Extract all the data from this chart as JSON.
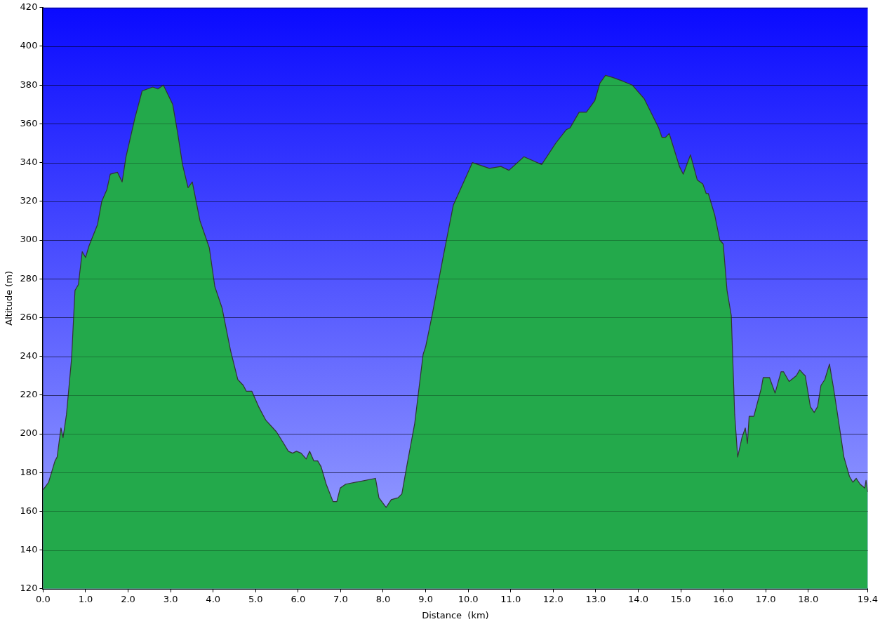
{
  "chart_data": {
    "type": "area",
    "xlabel": "Distance  (km)",
    "ylabel": "Altitude (m)",
    "xlim": [
      0,
      19.4
    ],
    "ylim": [
      120,
      420
    ],
    "xticks": [
      {
        "value": 0,
        "label": "0.0"
      },
      {
        "value": 1,
        "label": "1.0"
      },
      {
        "value": 2,
        "label": "2.0"
      },
      {
        "value": 3,
        "label": "3.0"
      },
      {
        "value": 4,
        "label": "4.0"
      },
      {
        "value": 5,
        "label": "5.0"
      },
      {
        "value": 6,
        "label": "6.0"
      },
      {
        "value": 7,
        "label": "7.0"
      },
      {
        "value": 8,
        "label": "8.0"
      },
      {
        "value": 9,
        "label": "9.0"
      },
      {
        "value": 10,
        "label": "10.0"
      },
      {
        "value": 11,
        "label": "11.0"
      },
      {
        "value": 12,
        "label": "12.0"
      },
      {
        "value": 13,
        "label": "13.0"
      },
      {
        "value": 14,
        "label": "14.0"
      },
      {
        "value": 15,
        "label": "15.0"
      },
      {
        "value": 16,
        "label": "16.0"
      },
      {
        "value": 17,
        "label": "17.0"
      },
      {
        "value": 18,
        "label": "18.0"
      },
      {
        "value": 19.4,
        "label": "19.4"
      }
    ],
    "yticks": [
      120,
      140,
      160,
      180,
      200,
      220,
      240,
      260,
      280,
      300,
      320,
      340,
      360,
      380,
      400,
      420
    ],
    "grid": "y",
    "legend": false,
    "marker": "none",
    "line_style": "solid",
    "series": [
      {
        "color": "#23a94b",
        "x": [
          0,
          0.03,
          0.13,
          0.28,
          0.33,
          0.42,
          0.47,
          0.55,
          0.67,
          0.75,
          0.83,
          0.92,
          1.0,
          1.08,
          1.28,
          1.38,
          1.5,
          1.58,
          1.75,
          1.86,
          1.95,
          2.16,
          2.33,
          2.58,
          2.7,
          2.83,
          3.05,
          3.16,
          3.28,
          3.41,
          3.51,
          3.69,
          3.91,
          4.04,
          4.21,
          4.41,
          4.58,
          4.71,
          4.78,
          4.91,
          5.07,
          5.24,
          5.49,
          5.66,
          5.77,
          5.87,
          5.96,
          6.07,
          6.19,
          6.27,
          6.37,
          6.46,
          6.54,
          6.66,
          6.82,
          6.91,
          6.99,
          7.12,
          7.82,
          7.9,
          8.07,
          8.19,
          8.35,
          8.44,
          8.57,
          8.74,
          8.94,
          9.0,
          9.15,
          9.4,
          9.65,
          10.1,
          10.5,
          10.77,
          10.96,
          11.31,
          11.73,
          12.06,
          12.31,
          12.4,
          12.61,
          12.78,
          12.98,
          13.1,
          13.23,
          13.39,
          13.64,
          13.86,
          14.14,
          14.48,
          14.56,
          14.64,
          14.73,
          14.97,
          15.06,
          15.23,
          15.39,
          15.52,
          15.6,
          15.65,
          15.8,
          15.92,
          16.0,
          16.09,
          16.19,
          16.27,
          16.34,
          16.44,
          16.52,
          16.57,
          16.61,
          16.72,
          16.89,
          16.94,
          17.09,
          17.22,
          17.36,
          17.42,
          17.55,
          17.72,
          17.8,
          17.88,
          17.93,
          18.05,
          18.14,
          18.22,
          18.3,
          18.39,
          18.5,
          18.6,
          18.69,
          18.84,
          18.97,
          19.05,
          19.13,
          19.22,
          19.33,
          19.36,
          19.4
        ],
        "values": [
          171,
          172,
          175,
          186,
          188,
          203,
          198,
          210,
          239,
          274,
          277,
          294,
          291,
          297,
          308,
          320,
          326,
          334,
          335,
          330,
          343,
          363,
          377,
          379,
          378,
          380,
          370,
          356,
          339,
          327,
          330,
          310,
          296,
          276,
          265,
          243,
          228,
          225,
          222,
          222,
          214,
          207,
          201,
          195,
          191,
          190,
          191,
          190,
          187,
          191,
          186,
          186,
          183,
          174,
          165,
          165,
          172,
          174,
          177,
          167,
          162,
          166,
          167,
          169,
          185,
          205,
          241,
          245,
          261,
          290,
          318,
          340,
          337,
          338,
          336,
          343,
          339,
          350,
          357,
          358,
          366,
          366,
          372,
          381,
          385,
          384,
          382,
          380,
          373,
          358,
          353,
          353,
          355,
          338,
          334,
          344,
          331,
          329,
          324,
          324,
          313,
          300,
          298,
          274,
          261,
          210,
          188,
          198,
          203,
          195,
          209,
          209,
          223,
          229,
          229,
          221,
          232,
          232,
          227,
          230,
          233,
          231,
          230,
          214,
          211,
          214,
          225,
          228,
          236,
          223,
          210,
          188,
          178,
          175,
          177,
          174,
          172,
          176,
          170
        ]
      }
    ]
  }
}
